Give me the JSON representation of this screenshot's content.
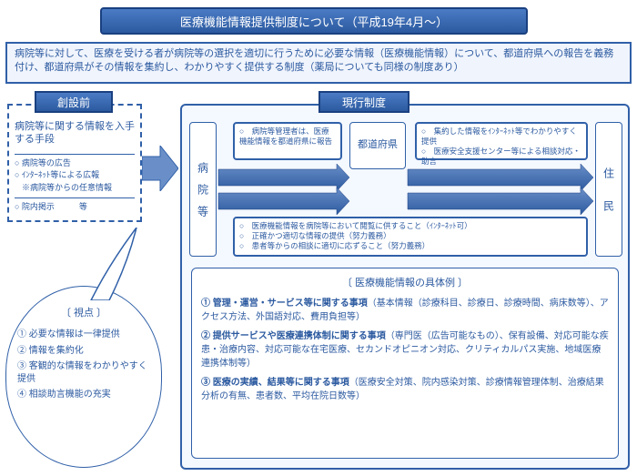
{
  "colors": {
    "primary": "#2c5aa0",
    "border": "#3060a8",
    "grad_top": "#4a7bc4",
    "grad_bot": "#2c5aa0",
    "bg_light": "#f0f4fc",
    "bg_lighter": "#f4f8ff"
  },
  "title": "医療機能情報提供制度について（平成19年4月～）",
  "description": "病院等に対して、医療を受ける者が病院等の選択を適切に行うために必要な情報（医療機能情報）について、都道府県への報告を義務付け、都道府県がその情報を集約し、わかりやすく提供する制度（薬局についても同様の制度あり）",
  "before": {
    "title": "創設前",
    "heading": "病院等に関する情報を入手する手段",
    "items": [
      "○ 病院等の広告",
      "○ ｲﾝﾀｰﾈｯﾄ等による広報",
      "※病院等からの任意情報",
      "○ 院内掲示　　　等"
    ]
  },
  "current": {
    "title": "現行制度",
    "hospital": "病　院　等",
    "prefecture": "都道府県",
    "resident": "住　　民",
    "box1": "○　病院等管理者は、医療機能情報を都道府県に報告",
    "box2": "○　集約した情報をｲﾝﾀｰﾈｯﾄ等でわかりやすく提供\n○　医療安全支援センター等による相談対応・助言",
    "box3": "○　医療機能情報を病院等において閲覧に供すること（ｲﾝﾀｰﾈｯﾄ可）\n○　正確かつ適切な情報の提供（努力義務）\n○　患者等からの相談に適切に応ずること（努力義務）"
  },
  "viewpoint": {
    "title": "〔 視点 〕",
    "items": [
      "① 必要な情報は一律提供",
      "② 情報を集約化",
      "③ 客観的な情報をわかりやすく提供",
      "④ 相談助言機能の充実"
    ]
  },
  "details": {
    "title": "〔 医療機能情報の具体例 〕",
    "items": [
      {
        "head": "① 管理・運営・サービス等に関する事項",
        "body": "（基本情報（診療科目、診療日、診療時間、病床数等）、アクセス方法、外国語対応、費用負担等）"
      },
      {
        "head": "② 提供サービスや医療連携体制に関する事項",
        "body": "（専門医（広告可能なもの）、保有設備、対応可能な疾患・治療内容、対応可能な在宅医療、セカンドオピニオン対応、クリティカルパス実施、地域医療連携体制等）"
      },
      {
        "head": "③ 医療の実績、結果等に関する事項",
        "body": "（医療安全対策、院内感染対策、診療情報管理体制、治療結果分析の有無、患者数、平均在院日数等）"
      }
    ]
  }
}
